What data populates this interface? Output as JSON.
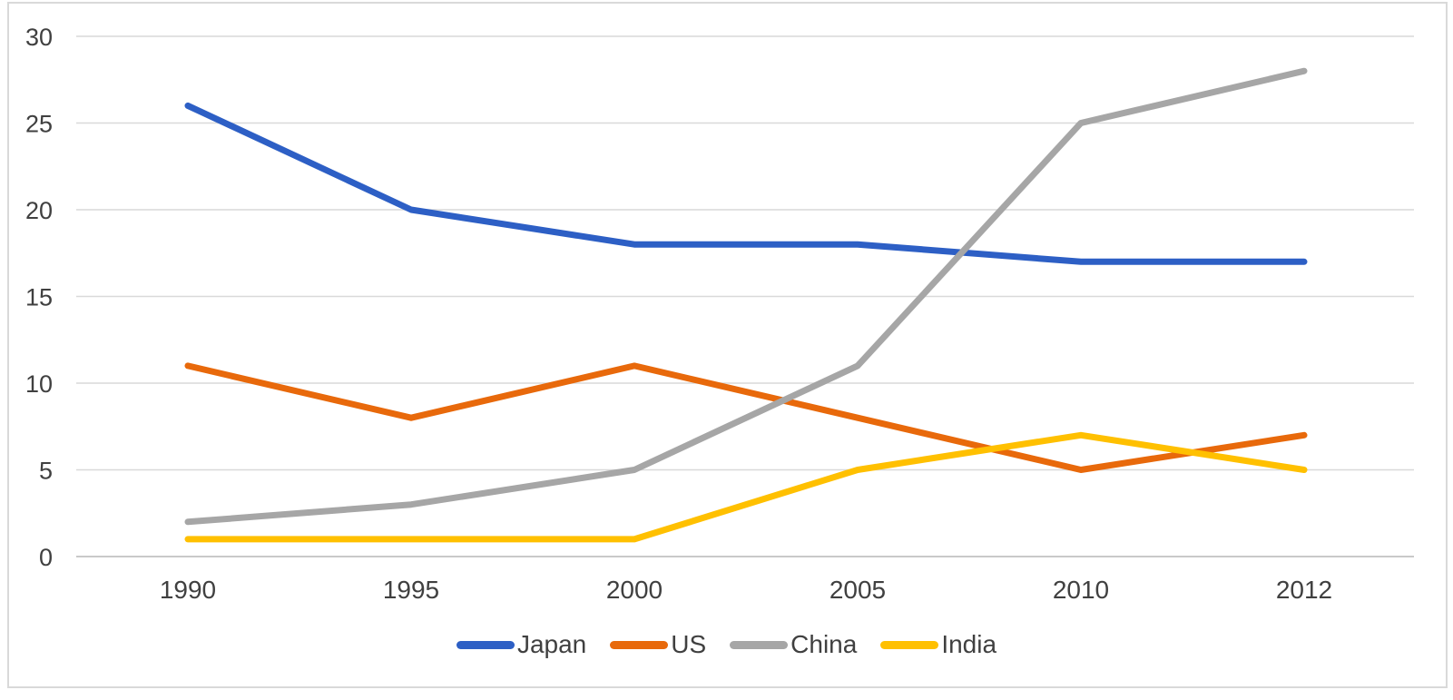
{
  "chart_data": {
    "type": "line",
    "title": "",
    "xlabel": "",
    "ylabel": "",
    "categories": [
      "1990",
      "1995",
      "2000",
      "2005",
      "2010",
      "2012"
    ],
    "series": [
      {
        "name": "Japan",
        "color": "#2D5FC5",
        "values": [
          26,
          20,
          18,
          18,
          17,
          17
        ]
      },
      {
        "name": "US",
        "color": "#E8690B",
        "values": [
          11,
          8,
          11,
          8,
          5,
          7
        ]
      },
      {
        "name": "China",
        "color": "#A6A6A6",
        "values": [
          2,
          3,
          5,
          11,
          25,
          28
        ]
      },
      {
        "name": "India",
        "color": "#FFC000",
        "values": [
          1,
          1,
          1,
          5,
          7,
          5
        ]
      }
    ],
    "ylim": [
      0,
      30
    ],
    "yticks": [
      0,
      5,
      10,
      15,
      20,
      25,
      30
    ],
    "grid": true,
    "legend_position": "bottom-center"
  },
  "colors": {
    "background": "#FFFFFF",
    "chart_border": "#D9D9D9",
    "gridline": "#D9D9D9",
    "axis_line": "#C9C9C9",
    "tick_label": "#404040",
    "legend_label": "#404040"
  }
}
